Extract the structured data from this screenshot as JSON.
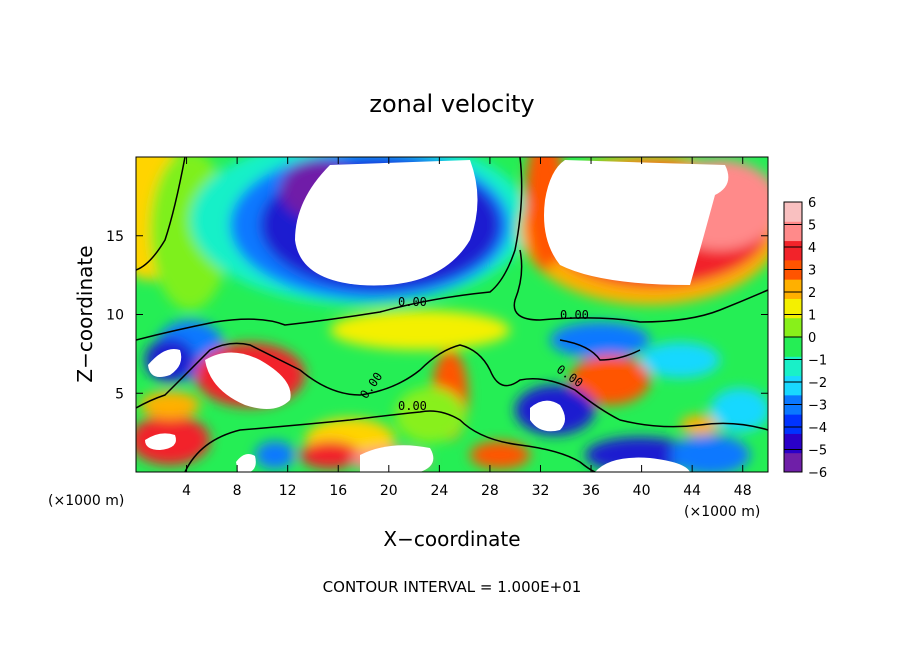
{
  "chart_data": {
    "type": "heatmap",
    "title": "zonal velocity",
    "xlabel": "X−coordinate",
    "ylabel": "Z−coordinate",
    "x_unit": "(×1000 m)",
    "x_unit_right": "(×1000 m)",
    "xlim": [
      0,
      50
    ],
    "ylim": [
      0,
      20
    ],
    "x_ticks": [
      4,
      8,
      12,
      16,
      20,
      24,
      28,
      32,
      36,
      40,
      44,
      48
    ],
    "y_ticks": [
      5,
      10,
      15
    ],
    "colorbar": {
      "min": -6,
      "max": 6,
      "tick_labels": [
        "6",
        "5",
        "4",
        "3",
        "2",
        "1",
        "0",
        "−1",
        "−2",
        "−3",
        "−4",
        "−5",
        "−6"
      ],
      "colors": [
        "#6f1fa8",
        "#2a00c8",
        "#0033ff",
        "#0a78ff",
        "#19d8ff",
        "#19f0c8",
        "#25ee55",
        "#88f01a",
        "#f4f000",
        "#ffb000",
        "#ff5400",
        "#f2232a",
        "#ff8a8a",
        "#f9c0c0"
      ]
    },
    "contour_labels": [
      "0.00",
      "0.00",
      "0.00",
      "0.00",
      "0.00",
      "0.00"
    ],
    "footer": "CONTOUR INTERVAL = 1.000E+01"
  }
}
